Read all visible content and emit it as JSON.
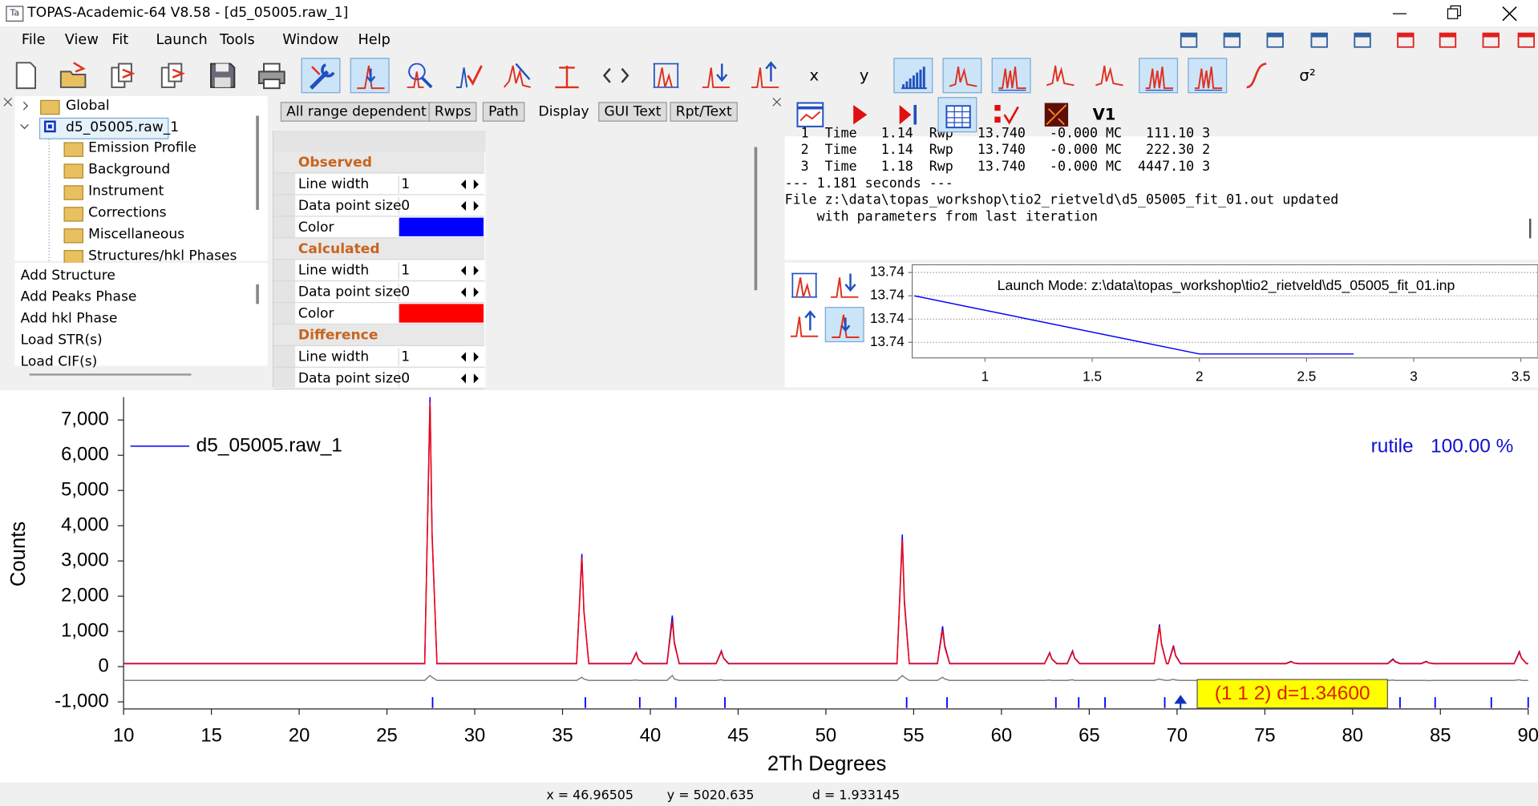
{
  "window": {
    "title": "TOPAS-Academic-64 V8.58 - [d5_05005.raw_1]"
  },
  "menu": [
    "File",
    "View",
    "Fit",
    "Launch",
    "Tools",
    "Window",
    "Help"
  ],
  "toolbar": {
    "x_button": "x",
    "y_button": "y",
    "sigma_button": "σ²",
    "version_button": "V1"
  },
  "tree": {
    "root": "Global",
    "file": "d5_05005.raw_1",
    "children": [
      "Emission Profile",
      "Background",
      "Instrument",
      "Corrections",
      "Miscellaneous",
      "Structures/hkl Phases"
    ]
  },
  "commands": [
    "Add Structure",
    "Add Peaks Phase",
    "Add hkl Phase",
    "Load STR(s)",
    "Load CIF(s)"
  ],
  "tabs": [
    "All range dependent",
    "Rwps",
    "Path",
    "Display",
    "GUI Text",
    "Rpt/Text"
  ],
  "properties": [
    {
      "title": "Observed",
      "rows": [
        {
          "label": "Line width",
          "value": "1"
        },
        {
          "label": "Data point size",
          "value": "0"
        },
        {
          "label": "Color",
          "color": "#0000ff"
        }
      ]
    },
    {
      "title": "Calculated",
      "rows": [
        {
          "label": "Line width",
          "value": "1"
        },
        {
          "label": "Data point size",
          "value": "0"
        },
        {
          "label": "Color",
          "color": "#ff0000"
        }
      ]
    },
    {
      "title": "Difference",
      "rows": [
        {
          "label": "Line width",
          "value": "1"
        },
        {
          "label": "Data point size",
          "value": "0"
        }
      ]
    }
  ],
  "log": {
    "lines": [
      "  1  Time   1.14  Rwp   13.740   -0.000 MC   111.10 3",
      "  2  Time   1.14  Rwp   13.740   -0.000 MC   222.30 2",
      "  3  Time   1.18  Rwp   13.740   -0.000 MC  4447.10 3",
      "--- 1.181 seconds ---",
      "File z:\\data\\topas_workshop\\tio2_rietveld\\d5_05005_fit_01.out updated",
      "    with parameters from last iteration"
    ]
  },
  "convergence": {
    "title": "Launch Mode: z:\\data\\topas_workshop\\tio2_rietveld\\d5_05005_fit_01.inp",
    "xlim": [
      0.66,
      3.58
    ],
    "xticks": [
      1,
      1.5,
      2,
      2.5,
      3,
      3.5
    ],
    "ylim": [
      13.7395,
      13.7407
    ],
    "yticks": [
      {
        "value": 13.7406,
        "label": "13.74"
      },
      {
        "value": 13.7403,
        "label": "13.74"
      },
      {
        "value": 13.74,
        "label": "13.74"
      },
      {
        "value": 13.7397,
        "label": "13.74"
      }
    ],
    "grid": true,
    "x": [
      0.67,
      2,
      2.72
    ],
    "series": [
      {
        "color": "#0000ff",
        "values": [
          13.7403,
          13.73955,
          13.73955
        ]
      }
    ]
  },
  "plot": {
    "type": "line",
    "xlabel": "2Th Degrees",
    "ylabel": "Counts",
    "xlim": [
      10,
      90
    ],
    "xticks": [
      10,
      15,
      20,
      25,
      30,
      35,
      40,
      45,
      50,
      55,
      60,
      65,
      70,
      75,
      80,
      85,
      90
    ],
    "ylim": [
      -1200,
      7650
    ],
    "yticks": [
      {
        "value": 7000,
        "label": "7,000"
      },
      {
        "value": 6000,
        "label": "6,000"
      },
      {
        "value": 5000,
        "label": "5,000"
      },
      {
        "value": 4000,
        "label": "4,000"
      },
      {
        "value": 3000,
        "label": "3,000"
      },
      {
        "value": 2000,
        "label": "2,000"
      },
      {
        "value": 1000,
        "label": "1,000"
      },
      0,
      {
        "value": -1000,
        "label": "-1,000"
      }
    ],
    "x": [
      10,
      27.15,
      27.45,
      27.57,
      27.85,
      35.8,
      36.1,
      36.22,
      36.5,
      38.9,
      39.2,
      39.32,
      39.6,
      40.95,
      41.25,
      41.37,
      41.65,
      43.75,
      44.05,
      44.17,
      44.45,
      54.05,
      54.35,
      54.47,
      54.75,
      56.35,
      56.65,
      56.77,
      57.05,
      62.45,
      62.75,
      62.87,
      63.15,
      63.75,
      64.05,
      64.17,
      64.45,
      68.7,
      69.0,
      69.12,
      69.4,
      69.5,
      69.8,
      69.92,
      70.2,
      76.2,
      76.5,
      76.62,
      76.9,
      82.0,
      82.3,
      82.42,
      82.7,
      83.9,
      84.2,
      84.32,
      84.6,
      89.2,
      89.5,
      89.62,
      89.9,
      90
    ],
    "series": [
      {
        "name": "d5_05005.raw_1",
        "color": "#0000ff",
        "values": [
          90,
          90,
          7650,
          3800,
          90,
          90,
          3200,
          1600,
          90,
          90,
          400,
          220,
          90,
          90,
          1450,
          700,
          90,
          90,
          450,
          250,
          90,
          90,
          3750,
          1900,
          90,
          90,
          1150,
          600,
          90,
          90,
          400,
          220,
          90,
          90,
          450,
          250,
          90,
          90,
          1200,
          650,
          90,
          90,
          600,
          320,
          90,
          90,
          150,
          110,
          90,
          90,
          220,
          150,
          90,
          90,
          150,
          110,
          90,
          90,
          430,
          250,
          90,
          90
        ]
      },
      {
        "color": "#ff0000",
        "values": [
          80,
          80,
          7500,
          3700,
          80,
          80,
          3100,
          1550,
          80,
          80,
          380,
          210,
          80,
          80,
          1300,
          650,
          80,
          80,
          420,
          240,
          80,
          80,
          3600,
          1800,
          80,
          80,
          1050,
          550,
          80,
          80,
          380,
          210,
          80,
          80,
          420,
          240,
          80,
          80,
          1150,
          620,
          80,
          80,
          560,
          300,
          80,
          80,
          140,
          105,
          80,
          80,
          200,
          140,
          80,
          80,
          140,
          105,
          80,
          80,
          400,
          240,
          80,
          80
        ]
      },
      {
        "color": "#808080",
        "values": [
          -390,
          -390,
          -250,
          -300,
          -390,
          -390,
          -300,
          -350,
          -390,
          -390,
          -380,
          -390,
          -390,
          -390,
          -250,
          -350,
          -390,
          -390,
          -370,
          -390,
          -390,
          -390,
          -250,
          -300,
          -390,
          -390,
          -300,
          -350,
          -390,
          -390,
          -380,
          -390,
          -390,
          -390,
          -370,
          -390,
          -390,
          -390,
          -350,
          -370,
          -390,
          -390,
          -360,
          -380,
          -390,
          -390,
          -390,
          -395,
          -390,
          -390,
          -380,
          -390,
          -390,
          -390,
          -390,
          -395,
          -390,
          -390,
          -370,
          -390,
          -390,
          -390
        ]
      }
    ],
    "phase": {
      "name": "rutile",
      "amount": "100.00 %"
    },
    "hkl_ticks": {
      "color": "#0000ff",
      "x": [
        27.6,
        36.3,
        39.4,
        41.45,
        44.25,
        54.6,
        56.9,
        63.1,
        64.4,
        65.9,
        69.3,
        70.2,
        82.7,
        84.7,
        87.9,
        90
      ]
    },
    "annotation": {
      "text": "(1 1 2)  d=1.34600",
      "x": 70.2
    }
  },
  "status": {
    "x": "x = 46.96505",
    "y": "y = 5020.635",
    "d": "d = 1.933145"
  }
}
